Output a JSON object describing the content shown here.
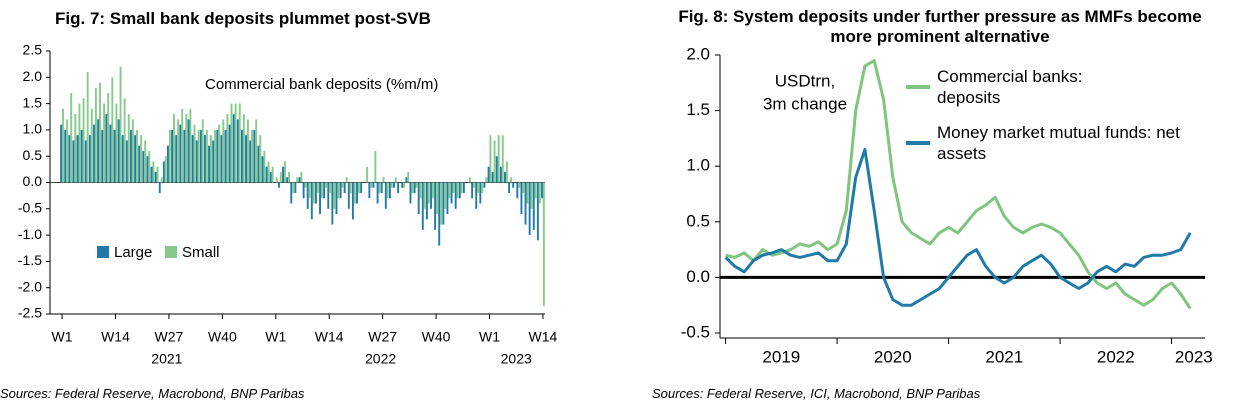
{
  "chart_data": [
    {
      "type": "bar",
      "title": "Fig. 7: Small bank deposits plummet post-SVB",
      "annotation": "Commercial bank deposits (%m/m)",
      "source": "Sources: Federal Reserve, Macrobond, BNP Paribas",
      "categories": [
        "W1",
        null,
        null,
        null,
        null,
        null,
        null,
        null,
        null,
        null,
        null,
        null,
        null,
        "W14",
        null,
        null,
        null,
        null,
        null,
        null,
        null,
        null,
        null,
        null,
        null,
        null,
        "W27",
        null,
        null,
        null,
        null,
        null,
        null,
        null,
        null,
        null,
        null,
        null,
        null,
        "W40",
        null,
        null,
        null,
        null,
        null,
        null,
        null,
        null,
        null,
        null,
        null,
        null,
        "W1",
        null,
        null,
        null,
        null,
        null,
        null,
        null,
        null,
        null,
        null,
        null,
        null,
        "W14",
        null,
        null,
        null,
        null,
        null,
        null,
        null,
        null,
        null,
        null,
        null,
        null,
        "W27",
        null,
        null,
        null,
        null,
        null,
        null,
        null,
        null,
        null,
        null,
        null,
        null,
        "W40",
        null,
        null,
        null,
        null,
        null,
        null,
        null,
        null,
        null,
        null,
        null,
        null,
        "W1",
        null,
        null,
        null,
        null,
        null,
        null,
        null,
        null,
        null,
        null,
        null,
        null,
        "W14"
      ],
      "year_labels": [
        "2021",
        "2022",
        "2023"
      ],
      "series": [
        {
          "name": "Large",
          "color": "#1f7aa8",
          "values": [
            1.1,
            1.0,
            0.9,
            0.8,
            0.9,
            1.0,
            0.8,
            0.9,
            1.1,
            1.2,
            1.0,
            1.3,
            1.1,
            1.0,
            1.2,
            0.9,
            0.8,
            1.0,
            0.9,
            0.7,
            0.6,
            0.5,
            0.3,
            0.2,
            -0.2,
            0.4,
            0.7,
            1.0,
            0.9,
            1.1,
            1.0,
            1.2,
            0.9,
            0.8,
            1.0,
            0.9,
            0.7,
            0.8,
            1.0,
            0.9,
            1.0,
            1.1,
            1.3,
            1.2,
            1.0,
            0.9,
            0.8,
            1.0,
            0.7,
            0.5,
            0.3,
            0.2,
            0.0,
            -0.1,
            0.3,
            0.1,
            -0.4,
            -0.2,
            0.1,
            -0.3,
            -0.5,
            -0.7,
            -0.4,
            -0.6,
            -0.3,
            -0.5,
            -0.8,
            -0.6,
            -0.3,
            -0.2,
            -0.5,
            -0.7,
            -0.4,
            -0.2,
            0.0,
            -0.3,
            -0.1,
            -0.4,
            -0.2,
            -0.5,
            -0.3,
            -0.1,
            -0.2,
            -0.1,
            0.1,
            -0.4,
            -0.2,
            -0.6,
            -0.9,
            -0.7,
            -0.5,
            -0.9,
            -1.2,
            -0.8,
            -0.6,
            -0.4,
            -0.5,
            -0.3,
            -0.2,
            0.0,
            -0.3,
            -0.5,
            -0.4,
            -0.1,
            0.3,
            0.2,
            0.5,
            0.3,
            0.2,
            -0.2,
            -0.1,
            -0.3,
            -0.6,
            -0.8,
            -1.0,
            -0.9,
            -1.1,
            -0.3
          ]
        },
        {
          "name": "Small",
          "color": "#85c98b",
          "values": [
            1.4,
            1.2,
            1.7,
            1.3,
            1.5,
            1.6,
            2.1,
            1.4,
            1.8,
            1.9,
            1.5,
            1.7,
            2.0,
            1.5,
            2.2,
            1.6,
            1.3,
            1.2,
            1.0,
            0.9,
            0.8,
            0.6,
            0.4,
            0.3,
            0.1,
            0.5,
            1.0,
            1.3,
            1.2,
            1.4,
            1.3,
            1.4,
            1.1,
            1.0,
            1.2,
            1.0,
            0.9,
            1.0,
            1.1,
            1.2,
            1.3,
            1.5,
            1.5,
            1.5,
            1.3,
            1.2,
            1.0,
            1.2,
            0.9,
            0.6,
            0.4,
            0.3,
            0.1,
            0.2,
            0.4,
            0.2,
            -0.2,
            0.1,
            0.2,
            -0.1,
            -0.3,
            -0.4,
            -0.2,
            -0.3,
            -0.1,
            -0.2,
            -0.5,
            -0.3,
            -0.1,
            0.1,
            -0.2,
            -0.4,
            -0.2,
            0.0,
            0.3,
            -0.1,
            0.6,
            -0.2,
            0.1,
            -0.3,
            -0.1,
            0.1,
            0.0,
            -0.1,
            0.2,
            -0.2,
            -0.1,
            -0.3,
            -0.5,
            -0.4,
            -0.3,
            -0.6,
            -0.8,
            -0.5,
            -0.3,
            -0.2,
            -0.3,
            -0.2,
            0.0,
            0.1,
            -0.1,
            -0.2,
            -0.2,
            0.1,
            0.9,
            0.8,
            0.9,
            0.9,
            0.4,
            0.1,
            0.0,
            -0.1,
            -0.2,
            -0.4,
            -0.5,
            -0.3,
            -0.4,
            -2.35
          ]
        }
      ],
      "ylim": [
        -2.5,
        2.5
      ],
      "yticks": [
        -2.5,
        {
          "value": -2,
          "label": "-2.0"
        },
        -1.5,
        {
          "value": -1,
          "label": "-1.0"
        },
        -0.5,
        {
          "value": 0,
          "label": "0.0"
        },
        0.5,
        {
          "value": 1,
          "label": "1.0"
        },
        1.5,
        {
          "value": 2,
          "label": "2.0"
        },
        2.5
      ],
      "grid": false,
      "legend": "lower-left"
    },
    {
      "type": "line",
      "title": "Fig. 8: System deposits under further pressure as MMFs become more prominent alternative",
      "annotation_lines": [
        "USDtrn,",
        "3m change"
      ],
      "source": "Sources: Federal Reserve, ICI, Macrobond, BNP Paribas",
      "x": [
        2019,
        2019.083,
        2019.167,
        2019.25,
        2019.333,
        2019.417,
        2019.5,
        2019.583,
        2019.667,
        2019.75,
        2019.833,
        2019.917,
        2020,
        2020.083,
        2020.167,
        2020.25,
        2020.333,
        2020.417,
        2020.5,
        2020.583,
        2020.667,
        2020.75,
        2020.833,
        2020.917,
        2021,
        2021.083,
        2021.167,
        2021.25,
        2021.333,
        2021.417,
        2021.5,
        2021.583,
        2021.667,
        2021.75,
        2021.833,
        2021.917,
        2022,
        2022.083,
        2022.167,
        2022.25,
        2022.333,
        2022.417,
        2022.5,
        2022.583,
        2022.667,
        2022.75,
        2022.833,
        2022.917,
        2023,
        2023.083,
        2023.167
      ],
      "series": [
        {
          "name": "Commercial banks: deposits",
          "color": "#7fc57f",
          "values": [
            0.2,
            0.18,
            0.22,
            0.15,
            0.25,
            0.2,
            0.22,
            0.25,
            0.3,
            0.28,
            0.32,
            0.25,
            0.3,
            0.6,
            1.5,
            1.9,
            1.95,
            1.6,
            0.9,
            0.5,
            0.4,
            0.35,
            0.3,
            0.4,
            0.45,
            0.4,
            0.5,
            0.6,
            0.65,
            0.72,
            0.55,
            0.45,
            0.4,
            0.45,
            0.48,
            0.45,
            0.4,
            0.3,
            0.2,
            0.05,
            -0.05,
            -0.1,
            -0.05,
            -0.15,
            -0.2,
            -0.25,
            -0.2,
            -0.1,
            -0.05,
            -0.15,
            -0.28
          ]
        },
        {
          "name": "Money market mutual funds: net assets",
          "color": "#1f7aa8",
          "values": [
            0.18,
            0.1,
            0.05,
            0.15,
            0.2,
            0.22,
            0.25,
            0.2,
            0.18,
            0.2,
            0.22,
            0.15,
            0.15,
            0.3,
            0.9,
            1.15,
            0.6,
            0.0,
            -0.2,
            -0.25,
            -0.25,
            -0.2,
            -0.15,
            -0.1,
            0.0,
            0.1,
            0.2,
            0.25,
            0.1,
            0.0,
            -0.05,
            0.0,
            0.1,
            0.15,
            0.2,
            0.12,
            0.0,
            -0.05,
            -0.1,
            -0.05,
            0.05,
            0.1,
            0.05,
            0.12,
            0.1,
            0.18,
            0.2,
            0.2,
            0.22,
            0.25,
            0.4
          ]
        }
      ],
      "xlim": [
        2018.95,
        2023.3
      ],
      "xticks": [
        {
          "value": 2019.5,
          "label": "2019"
        },
        {
          "value": 2020.5,
          "label": "2020"
        },
        {
          "value": 2021.5,
          "label": "2021"
        },
        {
          "value": 2022.5,
          "label": "2022"
        },
        {
          "value": 2023.2,
          "label": "2023"
        }
      ],
      "xtick_marks": [
        2019,
        2020,
        2021,
        2022,
        2023
      ],
      "ylim": [
        -0.5,
        2.0
      ],
      "yticks": [
        -0.5,
        {
          "value": 0,
          "label": "0.0"
        },
        0.5,
        {
          "value": 1,
          "label": "1.0"
        },
        1.5,
        {
          "value": 2,
          "label": "2.0"
        }
      ],
      "zero_line": true,
      "grid": false,
      "legend": "upper-right"
    }
  ]
}
